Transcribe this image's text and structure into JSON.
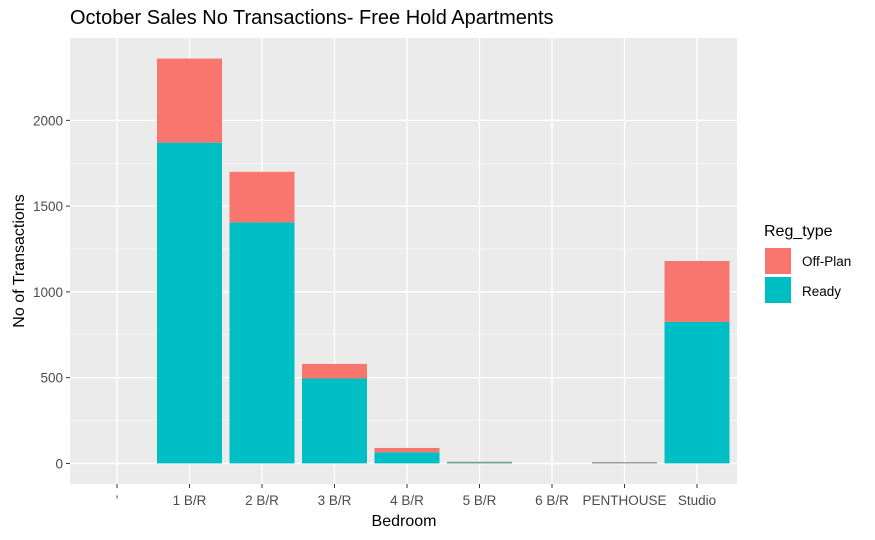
{
  "chart_data": {
    "type": "bar",
    "stacked": true,
    "title": "October Sales No Transactions- Free Hold Apartments",
    "xlabel": "Bedroom",
    "ylabel": "No of Transactions",
    "categories": [
      "'",
      "1 B/R",
      "2 B/R",
      "3 B/R",
      "4 B/R",
      "5 B/R",
      "6 B/R",
      "PENTHOUSE",
      "Studio"
    ],
    "series": [
      {
        "name": "Ready",
        "color": "#00BFC4",
        "values": [
          0,
          1870,
          1405,
          495,
          65,
          8,
          0,
          7,
          825
        ]
      },
      {
        "name": "Off-Plan",
        "color": "#F8766D",
        "values": [
          0,
          490,
          295,
          85,
          25,
          2,
          0,
          1,
          355
        ]
      }
    ],
    "ylim": [
      -120,
      2480
    ],
    "yticks": [
      0,
      500,
      1000,
      1500,
      2000
    ],
    "grid": true,
    "legend": {
      "title": "Reg_type",
      "position": "right",
      "entries": [
        "Off-Plan",
        "Ready"
      ]
    }
  }
}
